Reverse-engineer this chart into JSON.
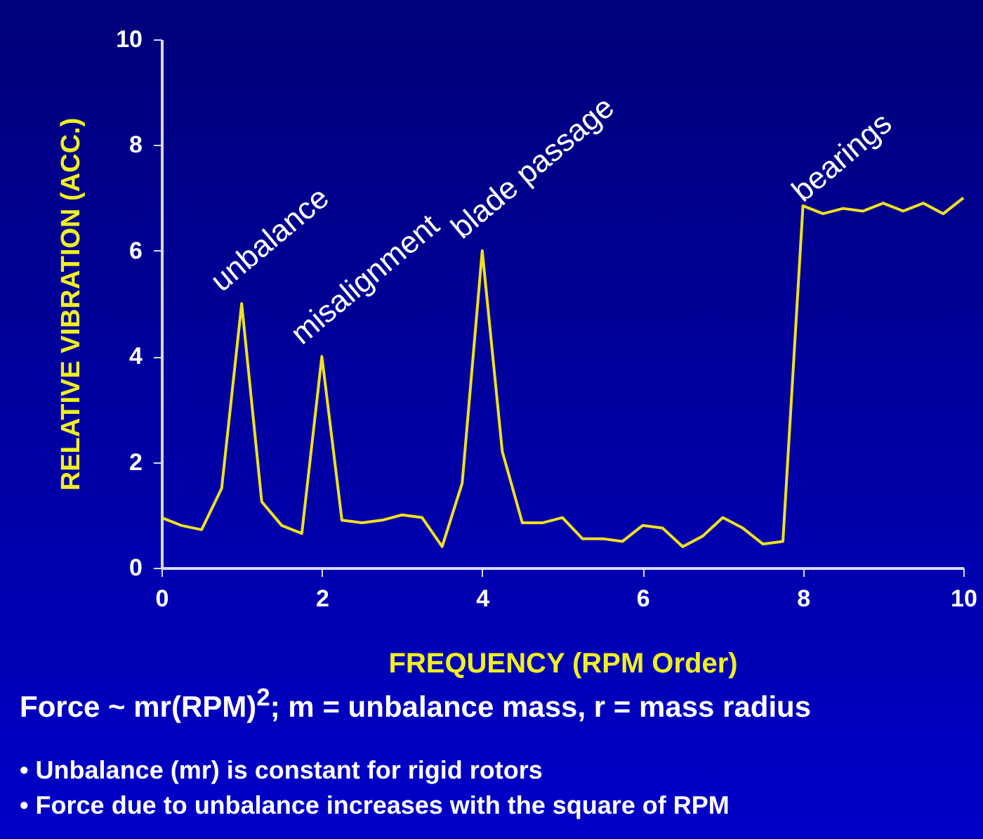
{
  "chart_data": {
    "type": "line",
    "xlabel": "FREQUENCY (RPM Order)",
    "ylabel": "RELATIVE VIBRATION (ACC.)",
    "x": [
      0,
      0.25,
      0.5,
      0.75,
      1,
      1.25,
      1.5,
      1.75,
      2,
      2.25,
      2.5,
      2.75,
      3,
      3.25,
      3.5,
      3.75,
      4,
      4.25,
      4.5,
      4.75,
      5,
      5.25,
      5.5,
      5.75,
      6,
      6.25,
      6.5,
      6.75,
      7,
      7.25,
      7.5,
      7.75,
      8,
      8.25,
      8.5,
      8.75,
      9,
      9.25,
      9.5,
      9.75,
      10
    ],
    "series": [
      {
        "color": "#f0e020",
        "values": [
          0.95,
          0.8,
          0.72,
          1.5,
          5,
          1.25,
          0.8,
          0.65,
          4,
          0.9,
          0.85,
          0.9,
          1.0,
          0.95,
          0.4,
          1.6,
          6,
          2.2,
          0.85,
          0.85,
          0.95,
          0.55,
          0.55,
          0.5,
          0.8,
          0.75,
          0.4,
          0.6,
          0.95,
          0.75,
          0.45,
          0.5,
          6.85,
          6.7,
          6.8,
          6.75,
          6.9,
          6.75,
          6.9,
          6.7,
          7.0
        ]
      }
    ],
    "xlim": [
      0,
      10
    ],
    "xticks": [
      0,
      2,
      4,
      6,
      8,
      10
    ],
    "ylim": [
      0,
      10
    ],
    "yticks": [
      0,
      2,
      4,
      6,
      8,
      10
    ],
    "grid": false,
    "legend": false,
    "marker": "none",
    "line_style": "solid",
    "annotations": [
      {
        "text": "unbalance",
        "x": 1,
        "y": 5
      },
      {
        "text": "misalignment",
        "x": 2,
        "y": 4
      },
      {
        "text": "blade passage",
        "x": 4,
        "y": 6
      },
      {
        "text": "bearings",
        "x": 8.25,
        "y": 6.7
      },
      "Force ~ mr(RPM)$^{2}$; m = unbalance mass, r = mass radius",
      "• Unbalance (mr) is constant for rigid rotors",
      "• Force due to unbalance increases with the square of RPM"
    ]
  }
}
